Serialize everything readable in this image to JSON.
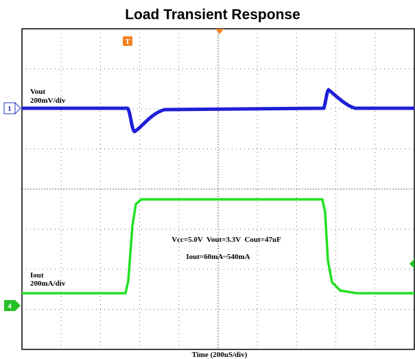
{
  "title": "Load Transient Response",
  "channel_1": {
    "marker": "1",
    "name": "Vout",
    "scale": "200mV/div"
  },
  "channel_4": {
    "marker": "4",
    "name": "Iout",
    "scale": "200mA/div"
  },
  "trigger_marker": "T",
  "conditions": "Vcc=5.0V  Vout=3.3V  Cout=47uF",
  "load_step": "Iout=60mA~540mA",
  "time_axis": "Time (200uS/div)"
}
